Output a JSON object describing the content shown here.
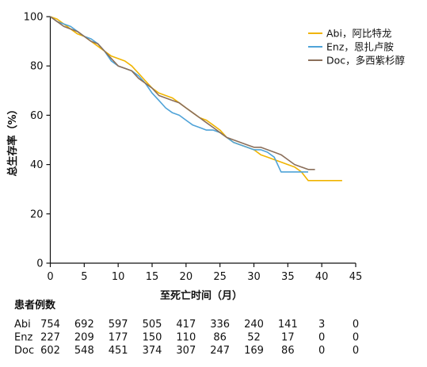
{
  "chart_data": {
    "type": "line",
    "title": "",
    "xlabel": "至死亡时间（月）",
    "ylabel": "总生存率（%）",
    "xlim": [
      0,
      45
    ],
    "ylim": [
      0,
      100
    ],
    "xticks": [
      0,
      5,
      10,
      15,
      20,
      25,
      30,
      35,
      40,
      45
    ],
    "yticks": [
      0,
      20,
      40,
      60,
      80,
      100
    ],
    "grid": false,
    "legend_position": "top-right",
    "series": [
      {
        "name": "Abi，阿比特龙",
        "color": "#f0b400",
        "x": [
          0,
          1,
          2,
          3,
          4,
          5,
          6,
          7,
          8,
          9,
          10,
          11,
          12,
          13,
          14,
          15,
          16,
          17,
          18,
          19,
          20,
          21,
          22,
          23,
          24,
          25,
          26,
          27,
          28,
          29,
          30,
          31,
          32,
          33,
          34,
          35,
          36,
          37,
          38,
          39,
          40,
          41,
          42,
          43
        ],
        "y": [
          100,
          99,
          97,
          95,
          93,
          92,
          90,
          88,
          86,
          84,
          83,
          82,
          80,
          77,
          74,
          71,
          69,
          68,
          67,
          65,
          63,
          61,
          59,
          58,
          56,
          54,
          51,
          49,
          48,
          47,
          46,
          44,
          43,
          42,
          41,
          40,
          39,
          37,
          33.5,
          33.5,
          33.5,
          33.5,
          33.5,
          33.5
        ]
      },
      {
        "name": "Enz，恩扎卢胺",
        "color": "#4fa3d8",
        "x": [
          0,
          1,
          2,
          3,
          4,
          5,
          6,
          7,
          8,
          9,
          10,
          11,
          12,
          13,
          14,
          15,
          16,
          17,
          18,
          19,
          20,
          21,
          22,
          23,
          24,
          25,
          26,
          27,
          28,
          29,
          30,
          31,
          32,
          33,
          34,
          35,
          36,
          37,
          38
        ],
        "y": [
          100,
          98,
          97,
          96,
          94,
          92,
          91,
          89,
          86,
          82,
          80,
          79,
          78,
          76,
          73,
          69,
          66,
          63,
          61,
          60,
          58,
          56,
          55,
          54,
          54,
          53,
          51,
          49,
          48,
          47,
          46,
          46,
          45,
          43,
          37,
          37,
          37,
          37,
          37
        ]
      },
      {
        "name": "Doc，多西紫杉醇",
        "color": "#8b6f5a",
        "x": [
          0,
          1,
          2,
          3,
          4,
          5,
          6,
          7,
          8,
          9,
          10,
          11,
          12,
          13,
          14,
          15,
          16,
          17,
          18,
          19,
          20,
          21,
          22,
          23,
          24,
          25,
          26,
          27,
          28,
          29,
          30,
          31,
          32,
          33,
          34,
          35,
          36,
          37,
          38,
          39
        ],
        "y": [
          100,
          98,
          96,
          95,
          94,
          92,
          90,
          89,
          86,
          83,
          80,
          79,
          78,
          75,
          73,
          71,
          68,
          67,
          66,
          65,
          63,
          61,
          59,
          57,
          55,
          53,
          51,
          50,
          49,
          48,
          47,
          47,
          46,
          45,
          44,
          42,
          40,
          39,
          38,
          38
        ]
      }
    ],
    "at_risk": {
      "label": "患者例数",
      "times": [
        0,
        5,
        10,
        15,
        20,
        25,
        30,
        35,
        40,
        45
      ],
      "rows": [
        {
          "name": "Abi",
          "values": [
            "754",
            "692",
            "597",
            "505",
            "417",
            "336",
            "240",
            "141",
            "3",
            "0"
          ]
        },
        {
          "name": "Enz",
          "values": [
            "227",
            "209",
            "177",
            "150",
            "110",
            "86",
            "52",
            "17",
            "0",
            "0"
          ]
        },
        {
          "name": "Doc",
          "values": [
            "602",
            "548",
            "451",
            "374",
            "307",
            "247",
            "169",
            "86",
            "0",
            "0"
          ]
        }
      ]
    }
  }
}
